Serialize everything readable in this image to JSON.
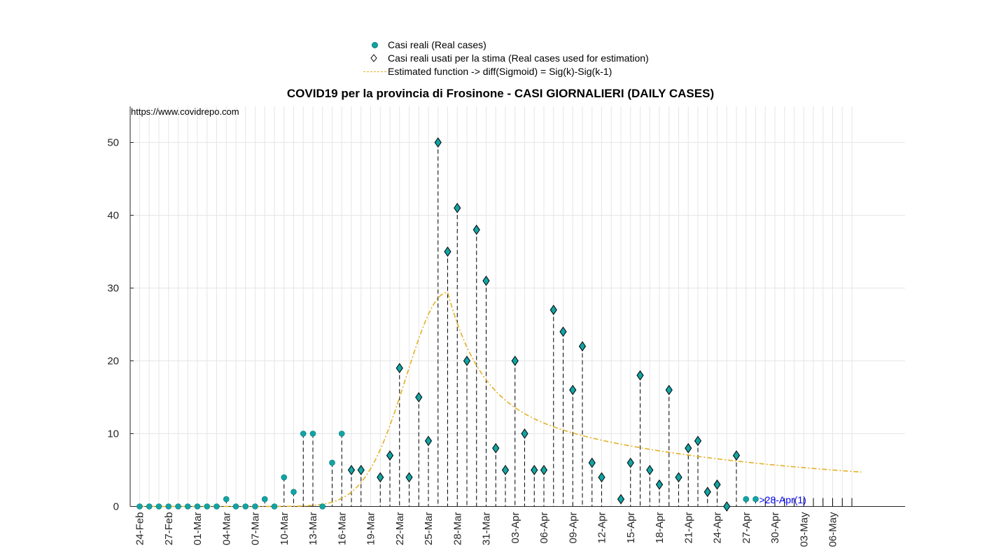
{
  "legend": {
    "items": [
      {
        "label": "Casi reali (Real cases)",
        "symbol": "dot-icon"
      },
      {
        "label": "Casi reali usati per la stima (Real cases used for estimation)",
        "symbol": "diamond-icon"
      },
      {
        "label": "Estimated function -> diff(Sigmoid) = Sig(k)-Sig(k-1)",
        "symbol": "dashed-line-icon"
      }
    ]
  },
  "source_note": "https://www.covidrepo.com",
  "chart_data": {
    "type": "scatter",
    "title": "COVID19 per la provincia di Frosinone - CASI GIORNALIERI (DAILY CASES)",
    "xlabel": "",
    "ylabel": "",
    "ylim": [
      0,
      55
    ],
    "yticks": [
      0,
      10,
      20,
      30,
      40,
      50
    ],
    "grid": true,
    "legend_position": "top-center",
    "start_date": "24-Feb",
    "num_days": 75,
    "x_tick_labels": [
      "24-Feb",
      "27-Feb",
      "01-Mar",
      "04-Mar",
      "07-Mar",
      "10-Mar",
      "13-Mar",
      "16-Mar",
      "19-Mar",
      "22-Mar",
      "25-Mar",
      "28-Mar",
      "31-Mar",
      "03-Apr",
      "06-Apr",
      "09-Apr",
      "12-Apr",
      "15-Apr",
      "18-Apr",
      "21-Apr",
      "24-Apr",
      "27-Apr",
      "30-Apr",
      "03-May",
      "06-May"
    ],
    "x_tick_every_days": 3,
    "series": [
      {
        "name": "Casi reali (Real cases)",
        "marker": "dot",
        "dates": [
          "24-Feb",
          "25-Feb",
          "26-Feb",
          "27-Feb",
          "28-Feb",
          "29-Feb",
          "01-Mar",
          "02-Mar",
          "03-Mar",
          "04-Mar",
          "05-Mar",
          "06-Mar",
          "07-Mar",
          "08-Mar",
          "09-Mar",
          "10-Mar",
          "11-Mar",
          "12-Mar",
          "13-Mar",
          "14-Mar",
          "15-Mar",
          "16-Mar",
          "17-Mar",
          "18-Mar",
          "19-Mar",
          "20-Mar",
          "21-Mar",
          "22-Mar",
          "23-Mar",
          "24-Mar",
          "25-Mar",
          "26-Mar",
          "27-Mar",
          "28-Mar",
          "29-Mar",
          "30-Mar",
          "31-Mar",
          "01-Apr",
          "02-Apr",
          "03-Apr",
          "04-Apr",
          "05-Apr",
          "06-Apr",
          "07-Apr",
          "08-Apr",
          "09-Apr",
          "10-Apr",
          "11-Apr",
          "12-Apr",
          "13-Apr",
          "14-Apr",
          "15-Apr",
          "16-Apr",
          "17-Apr",
          "18-Apr",
          "19-Apr",
          "20-Apr",
          "21-Apr",
          "22-Apr",
          "23-Apr",
          "24-Apr",
          "25-Apr",
          "26-Apr",
          "27-Apr",
          "28-Apr"
        ],
        "values": [
          0,
          0,
          0,
          0,
          0,
          0,
          0,
          0,
          0,
          1,
          0,
          0,
          0,
          1,
          0,
          4,
          2,
          10,
          10,
          0,
          6,
          10,
          5,
          5,
          null,
          4,
          7,
          19,
          4,
          15,
          9,
          50,
          35,
          41,
          20,
          38,
          31,
          8,
          5,
          20,
          10,
          5,
          5,
          27,
          24,
          16,
          22,
          6,
          4,
          null,
          1,
          6,
          18,
          5,
          3,
          16,
          4,
          8,
          9,
          2,
          3,
          0,
          7,
          1,
          1
        ]
      },
      {
        "name": "Casi reali usati per la stima (Real cases used for estimation)",
        "marker": "diamond",
        "first_date": "17-Mar",
        "last_date": "26-Apr"
      },
      {
        "name": "Estimated function -> diff(Sigmoid) = Sig(k)-Sig(k-1)",
        "marker": "dashed-line",
        "peak_value": 29.4,
        "peak_date": "27-Mar",
        "start_value": 0,
        "end_value": 2.4,
        "end_date": "09-May"
      }
    ],
    "annotations": [
      {
        "text": ">28-Apr(1)",
        "date": "28-Apr",
        "value": 1
      }
    ]
  }
}
